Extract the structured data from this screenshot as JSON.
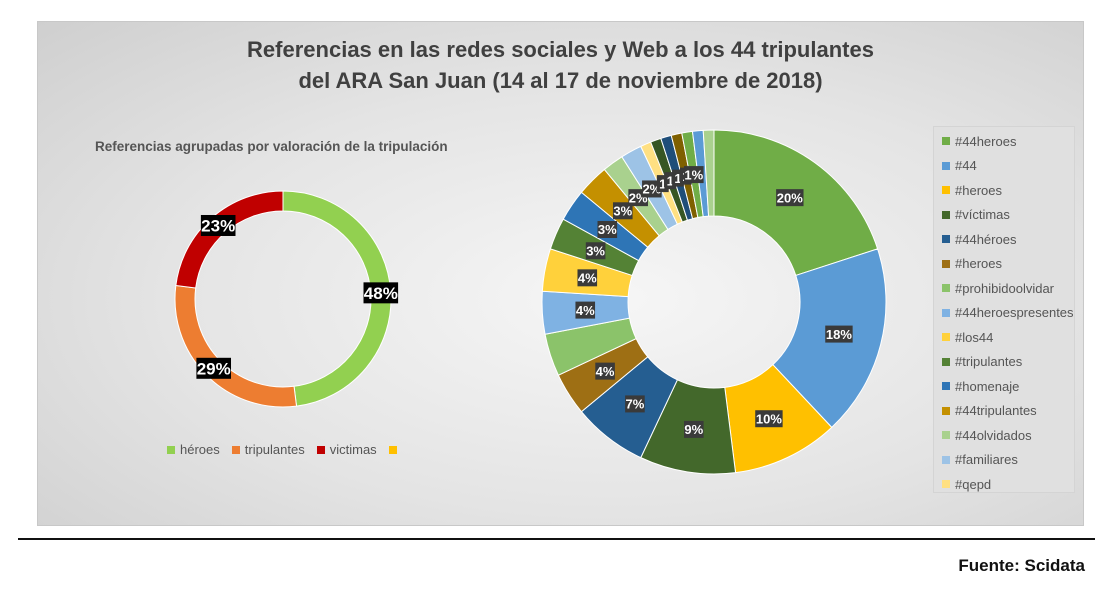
{
  "title_line1": "Referencias en las redes sociales y Web a los 44 tripulantes",
  "title_line2": "del ARA San Juan (14 al 17 de noviembre de 2018)",
  "source": "Fuente: Scidata",
  "chart_data": [
    {
      "type": "pie",
      "subtype": "donut",
      "title": "Referencias agrupadas por valoración de la tripulación",
      "categories": [
        "héroes",
        "tripulantes",
        "victimas",
        ""
      ],
      "values": [
        48,
        29,
        23,
        0
      ],
      "labels": [
        "48%",
        "29%",
        "23%",
        ""
      ],
      "colors": [
        "#92d050",
        "#ed7d31",
        "#c00000",
        "#ffc000"
      ],
      "legend": "bottom"
    },
    {
      "type": "pie",
      "subtype": "donut",
      "title": "",
      "categories": [
        "#44heroes",
        "#44",
        "#heroes",
        "#víctimas",
        "#44héroes",
        "#heroes",
        "#prohibidoolvidar",
        "#44heroespresentes",
        "#los44",
        "#tripulantes",
        "#homenaje",
        "#44tripulantes",
        "#44olvidados",
        "#familiares",
        "#qepd",
        "",
        "",
        "",
        "",
        "",
        ""
      ],
      "values": [
        20,
        18,
        10,
        9,
        7,
        4,
        4,
        4,
        4,
        3,
        3,
        3,
        2,
        2,
        1,
        1,
        1,
        1,
        1,
        1,
        1
      ],
      "labels": [
        "20%",
        "18%",
        "10%",
        "9%",
        "7%",
        "4%",
        "",
        "4%",
        "4%",
        "3%",
        "3%",
        "3%",
        "2%",
        "2%",
        "1",
        "1",
        "1",
        "1",
        "1%",
        "",
        ""
      ],
      "colors": [
        "#70ad47",
        "#5b9bd5",
        "#ffc000",
        "#43682b",
        "#255e91",
        "#9e6f14",
        "#8bc36a",
        "#7fb2e3",
        "#ffd13b",
        "#548235",
        "#2e75b6",
        "#c49000",
        "#a9d18e",
        "#9dc3e6",
        "#ffe082",
        "#375623",
        "#1f4e79",
        "#7f6000",
        "#70ad47",
        "#5b9bd5",
        "#a9d18e"
      ],
      "legend": "right"
    }
  ]
}
